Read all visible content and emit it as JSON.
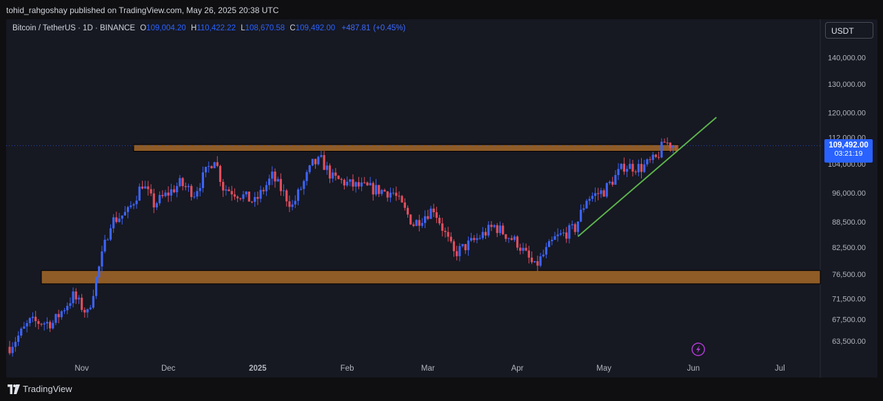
{
  "header": {
    "published": "tohid_rahgoshay published on TradingView.com, May 26, 2025 20:38 UTC"
  },
  "legend": {
    "symbol": "Bitcoin / TetherUS · 1D · BINANCE",
    "open_key": "O",
    "open": "109,004.20",
    "high_key": "H",
    "high": "110,422.22",
    "low_key": "L",
    "low": "108,670.58",
    "close_key": "C",
    "close": "109,492.00",
    "change": "+487.81",
    "change_pct": "(+0.45%)"
  },
  "currency_button": "USDT",
  "last_price": {
    "price": "109,492.00",
    "countdown": "03:21:19"
  },
  "footer": {
    "brand": "TradingView"
  },
  "icons": {
    "footer_logo": "tradingview-logo-icon",
    "alert": "lightning-icon"
  },
  "colors": {
    "up": "#3d64f5",
    "down": "#e04e5d",
    "zone": "#b8732a",
    "trendline": "#5cb34c",
    "accent": "#2962ff"
  },
  "chart_data": {
    "type": "candlestick",
    "title": "",
    "y_ticks": [
      "140,000.00",
      "130,000.00",
      "120,000.00",
      "112,000.00",
      "104,000.00",
      "96,000.00",
      "88,500.00",
      "82,500.00",
      "76,500.00",
      "71,500.00",
      "67,500.00",
      "63,500.00"
    ],
    "x_ticks": [
      "Nov",
      "Dec",
      "2025",
      "Feb",
      "Mar",
      "Apr",
      "May",
      "Jun",
      "Jul"
    ],
    "scale": "log",
    "ylim": [
      61000,
      147000
    ],
    "x_range": [
      "2024-10-07",
      "2025-07-15"
    ],
    "keypoints": [
      [
        "2024-10-07",
        62500
      ],
      [
        "2024-10-14",
        67000
      ],
      [
        "2024-10-22",
        66800
      ],
      [
        "2024-10-29",
        72000
      ],
      [
        "2024-11-03",
        68500
      ],
      [
        "2024-11-06",
        75500
      ],
      [
        "2024-11-11",
        88500
      ],
      [
        "2024-11-17",
        91000
      ],
      [
        "2024-11-22",
        98500
      ],
      [
        "2024-11-26",
        93000
      ],
      [
        "2024-12-02",
        96500
      ],
      [
        "2024-12-05",
        98500
      ],
      [
        "2024-12-10",
        96000
      ],
      [
        "2024-12-17",
        106000
      ],
      [
        "2024-12-20",
        97500
      ],
      [
        "2024-12-26",
        95500
      ],
      [
        "2024-12-31",
        93500
      ],
      [
        "2025-01-06",
        100500
      ],
      [
        "2025-01-13",
        92500
      ],
      [
        "2025-01-20",
        104000
      ],
      [
        "2025-01-23",
        105000
      ],
      [
        "2025-01-27",
        100000
      ],
      [
        "2025-02-03",
        98000
      ],
      [
        "2025-02-10",
        97000
      ],
      [
        "2025-02-17",
        96000
      ],
      [
        "2025-02-24",
        88000
      ],
      [
        "2025-03-03",
        92000
      ],
      [
        "2025-03-10",
        81000
      ],
      [
        "2025-03-17",
        84000
      ],
      [
        "2025-03-24",
        87500
      ],
      [
        "2025-04-01",
        83500
      ],
      [
        "2025-04-07",
        78000
      ],
      [
        "2025-04-14",
        84500
      ],
      [
        "2025-04-21",
        87000
      ],
      [
        "2025-04-25",
        94500
      ],
      [
        "2025-05-01",
        96500
      ],
      [
        "2025-05-08",
        103500
      ],
      [
        "2025-05-14",
        103000
      ],
      [
        "2025-05-19",
        105500
      ],
      [
        "2025-05-22",
        110500
      ],
      [
        "2025-05-26",
        109492
      ]
    ],
    "zones": [
      {
        "from": "2024-11-19",
        "to": "2025-05-27",
        "low": 107800,
        "high": 109800
      },
      {
        "from": "2024-10-18",
        "to": "2025-07-15",
        "low": 74500,
        "high": 77300
      }
    ],
    "trendline": {
      "from": [
        "2025-04-22",
        85000
      ],
      "to": [
        "2025-06-09",
        118500
      ]
    },
    "last_price_line": 109492
  }
}
